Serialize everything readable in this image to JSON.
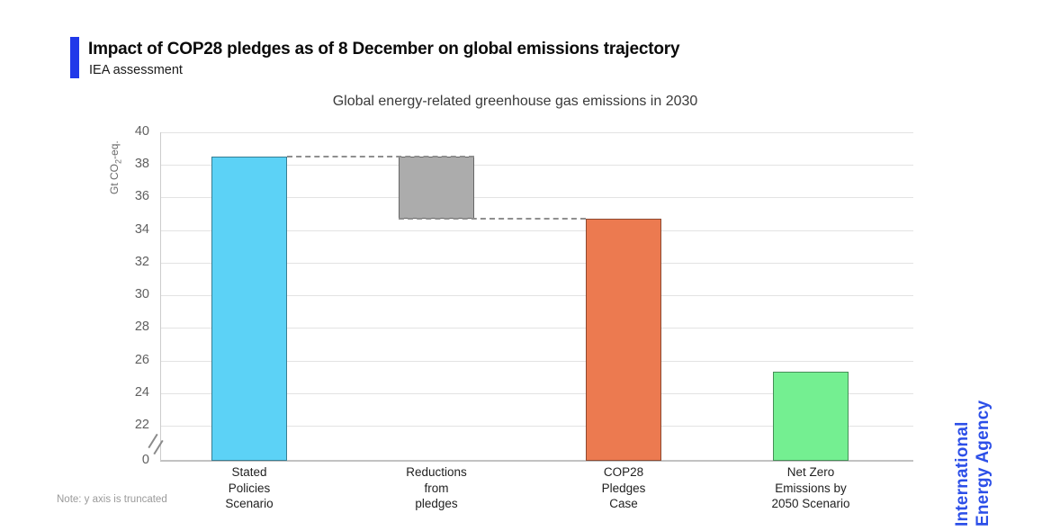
{
  "header": {
    "title": "Impact of COP28 pledges as of 8 December on global emissions trajectory",
    "subtitle": "IEA assessment"
  },
  "chart_data": {
    "type": "bar",
    "title": "Global energy-related greenhouse gas emissions in 2030",
    "ylabel": {
      "prefix": "Gt CO",
      "sub": "2",
      "suffix": "-eq."
    },
    "yticks": [
      40,
      38,
      36,
      34,
      32,
      30,
      28,
      26,
      24,
      22,
      0
    ],
    "ylim_visible": [
      22,
      40
    ],
    "axis_break_note": "y axis truncated between 0 and 22",
    "grid": true,
    "bars": [
      {
        "label_lines": [
          "Stated",
          "Policies",
          "Scenario"
        ],
        "value": 38.5,
        "base": 0,
        "color": "#5cd2f6"
      },
      {
        "label_lines": [
          "Reductions",
          "from",
          "pledges"
        ],
        "value": 38.5,
        "base": 34.7,
        "color": "#acacac",
        "floating": true
      },
      {
        "label_lines": [
          "COP28",
          "Pledges",
          "Case"
        ],
        "value": 34.7,
        "base": 0,
        "color": "#ec7a50"
      },
      {
        "label_lines": [
          "Net Zero",
          "Emissions by",
          "2050 Scenario"
        ],
        "value": 25.3,
        "base": 0,
        "color": "#74ef91"
      }
    ],
    "connectors": [
      {
        "level": 38.5,
        "x1_bar": 0,
        "x1_edge": "right",
        "x2_bar": 1,
        "x2_edge": "right"
      },
      {
        "level": 34.7,
        "x1_bar": 1,
        "x1_edge": "left",
        "x2_bar": 2,
        "x2_edge": "left"
      }
    ]
  },
  "note": "Note: y axis is truncated",
  "branding": {
    "line1": "International",
    "line2": "Energy Agency",
    "color": "#2c4fe8"
  },
  "accent_color": "#2139e9"
}
